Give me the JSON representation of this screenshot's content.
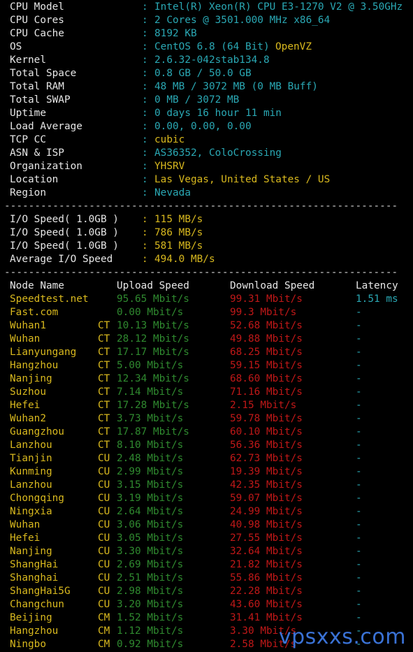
{
  "sysinfo": [
    {
      "label": "CPU Model",
      "value": "Intel(R) Xeon(R) CPU E3-1270 V2 @ 3.50GHz",
      "color": "cy"
    },
    {
      "label": "CPU Cores",
      "value": "2 Cores @ 3501.000 MHz x86_64",
      "color": "cy"
    },
    {
      "label": "CPU Cache",
      "value": "8192 KB",
      "color": "cy"
    },
    {
      "label": "OS",
      "value": "CentOS 6.8 (64 Bit)",
      "extra": "OpenVZ",
      "color": "cy"
    },
    {
      "label": "Kernel",
      "value": "2.6.32-042stab134.8",
      "color": "cy"
    },
    {
      "label": "Total Space",
      "value": "0.8 GB / 50.0 GB",
      "color": "cy"
    },
    {
      "label": "Total RAM",
      "value": "48 MB / 3072 MB (0 MB Buff)",
      "color": "cy"
    },
    {
      "label": "Total SWAP",
      "value": "0 MB / 3072 MB",
      "color": "cy"
    },
    {
      "label": "Uptime",
      "value": "0 days 16 hour 11 min",
      "color": "cy"
    },
    {
      "label": "Load Average",
      "value": "0.00, 0.00, 0.00",
      "color": "cy"
    },
    {
      "label": "TCP CC",
      "value": "cubic",
      "color": "y"
    },
    {
      "label": "ASN & ISP",
      "value": "AS36352, ColoCrossing",
      "color": "cy"
    },
    {
      "label": "Organization",
      "value": "YHSRV",
      "color": "y"
    },
    {
      "label": "Location",
      "value": "Las Vegas, United States / US",
      "color": "y"
    },
    {
      "label": "Region",
      "value": "Nevada",
      "color": "cy"
    }
  ],
  "separator": "-----------------------------------------------------------------",
  "io": [
    {
      "label": "I/O Speed( 1.0GB )",
      "value": "115 MB/s"
    },
    {
      "label": "I/O Speed( 1.0GB )",
      "value": "786 MB/s"
    },
    {
      "label": "I/O Speed( 1.0GB )",
      "value": "581 MB/s"
    },
    {
      "label": "Average I/O Speed",
      "value": "494.0 MB/s"
    }
  ],
  "colon": ":",
  "speed_header": {
    "node": "Node Name",
    "upload": "Upload Speed",
    "download": "Download Speed",
    "latency": "Latency"
  },
  "speed_rows": [
    {
      "node": "Speedtest.net",
      "isp": "",
      "up": "95.65 Mbit/s",
      "down": "99.31 Mbit/s",
      "lat": "1.51 ms"
    },
    {
      "node": "Fast.com",
      "isp": "",
      "up": "0.00 Mbit/s",
      "down": "99.3 Mbit/s",
      "lat": "-"
    },
    {
      "node": "Wuhan1",
      "isp": "CT",
      "up": "10.13 Mbit/s",
      "down": "52.68 Mbit/s",
      "lat": "-"
    },
    {
      "node": "Wuhan",
      "isp": "CT",
      "up": "28.12 Mbit/s",
      "down": "49.88 Mbit/s",
      "lat": "-"
    },
    {
      "node": "Lianyungang",
      "isp": "CT",
      "up": "17.17 Mbit/s",
      "down": "68.25 Mbit/s",
      "lat": "-"
    },
    {
      "node": "Hangzhou",
      "isp": "CT",
      "up": "5.00 Mbit/s",
      "down": "59.15 Mbit/s",
      "lat": "-"
    },
    {
      "node": "Nanjing",
      "isp": "CT",
      "up": "12.34 Mbit/s",
      "down": "68.60 Mbit/s",
      "lat": "-"
    },
    {
      "node": "Suzhou",
      "isp": "CT",
      "up": "7.14 Mbit/s",
      "down": "71.16 Mbit/s",
      "lat": "-"
    },
    {
      "node": "Hefei",
      "isp": "CT",
      "up": "17.28 Mbit/s",
      "down": "2.15 Mbit/s",
      "lat": "-"
    },
    {
      "node": "Wuhan2",
      "isp": "CT",
      "up": "3.73 Mbit/s",
      "down": "59.78 Mbit/s",
      "lat": "-"
    },
    {
      "node": "Guangzhou",
      "isp": "CT",
      "up": "17.87 Mbit/s",
      "down": "60.10 Mbit/s",
      "lat": "-"
    },
    {
      "node": "Lanzhou",
      "isp": "CT",
      "up": "8.10 Mbit/s",
      "down": "56.36 Mbit/s",
      "lat": "-"
    },
    {
      "node": "Tianjin",
      "isp": "CU",
      "up": "2.48 Mbit/s",
      "down": "62.73 Mbit/s",
      "lat": "-"
    },
    {
      "node": "Kunming",
      "isp": "CU",
      "up": "2.99 Mbit/s",
      "down": "19.39 Mbit/s",
      "lat": "-"
    },
    {
      "node": "Lanzhou",
      "isp": "CU",
      "up": "3.15 Mbit/s",
      "down": "42.35 Mbit/s",
      "lat": "-"
    },
    {
      "node": "Chongqing",
      "isp": "CU",
      "up": "3.19 Mbit/s",
      "down": "59.07 Mbit/s",
      "lat": "-"
    },
    {
      "node": "Ningxia",
      "isp": "CU",
      "up": "2.64 Mbit/s",
      "down": "24.99 Mbit/s",
      "lat": "-"
    },
    {
      "node": "Wuhan",
      "isp": "CU",
      "up": "3.06 Mbit/s",
      "down": "40.98 Mbit/s",
      "lat": "-"
    },
    {
      "node": "Hefei",
      "isp": "CU",
      "up": "3.05 Mbit/s",
      "down": "27.55 Mbit/s",
      "lat": "-"
    },
    {
      "node": "Nanjing",
      "isp": "CU",
      "up": "3.30 Mbit/s",
      "down": "32.64 Mbit/s",
      "lat": "-"
    },
    {
      "node": "ShangHai",
      "isp": "CU",
      "up": "2.69 Mbit/s",
      "down": "21.82 Mbit/s",
      "lat": "-"
    },
    {
      "node": "Shanghai",
      "isp": "CU",
      "up": "2.51 Mbit/s",
      "down": "55.86 Mbit/s",
      "lat": "-"
    },
    {
      "node": "ShangHai5G",
      "isp": "CU",
      "up": "2.98 Mbit/s",
      "down": "22.28 Mbit/s",
      "lat": "-"
    },
    {
      "node": "Changchun",
      "isp": "CU",
      "up": "3.20 Mbit/s",
      "down": "43.60 Mbit/s",
      "lat": "-"
    },
    {
      "node": "Beijing",
      "isp": "CM",
      "up": "1.52 Mbit/s",
      "down": "31.41 Mbit/s",
      "lat": "-"
    },
    {
      "node": "Hangzhou",
      "isp": "CM",
      "up": "1.12 Mbit/s",
      "down": "3.30 Mbit/s",
      "lat": "-"
    },
    {
      "node": "Ningbo",
      "isp": "CM",
      "up": "0.92 Mbit/s",
      "down": "2.58 Mbit/s",
      "lat": "-"
    }
  ],
  "watermark": "vpsxxs.com",
  "colors": {
    "background": "#000000",
    "label": "#e6e6e6",
    "cyan": "#2aa8b4",
    "yellow": "#d8b81e",
    "green": "#2f8a2f",
    "red": "#c01818"
  }
}
